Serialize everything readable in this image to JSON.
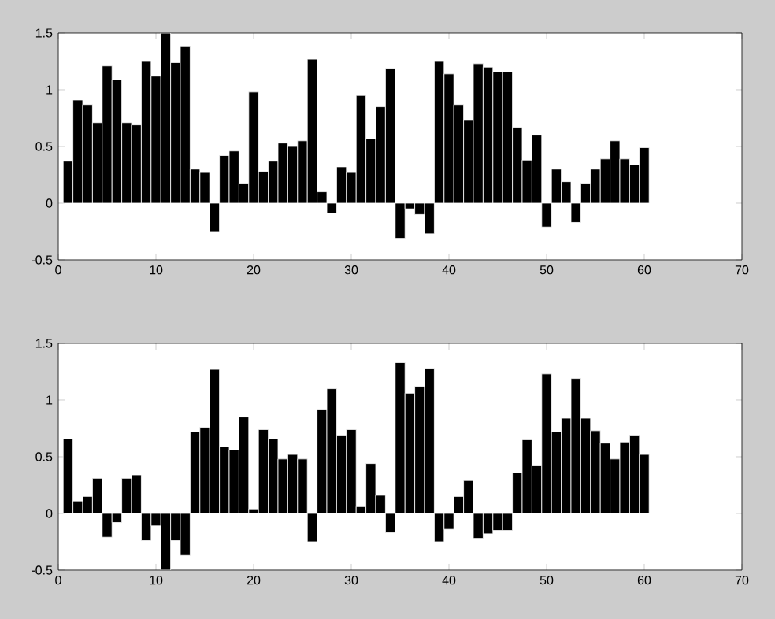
{
  "chart_data": [
    {
      "type": "bar",
      "color": "#000000",
      "xlim": [
        0,
        70
      ],
      "ylim": [
        -0.5,
        1.5
      ],
      "xticks": [
        0,
        10,
        20,
        30,
        40,
        50,
        60,
        70
      ],
      "yticks": [
        -0.5,
        0,
        0.5,
        1,
        1.5
      ],
      "x": [
        1,
        2,
        3,
        4,
        5,
        6,
        7,
        8,
        9,
        10,
        11,
        12,
        13,
        14,
        15,
        16,
        17,
        18,
        19,
        20,
        21,
        22,
        23,
        24,
        25,
        26,
        27,
        28,
        29,
        30,
        31,
        32,
        33,
        34,
        35,
        36,
        37,
        38,
        39,
        40,
        41,
        42,
        43,
        44,
        45,
        46,
        47,
        48,
        49,
        50,
        51,
        52,
        53,
        54,
        55,
        56,
        57,
        58,
        59,
        60
      ],
      "values": [
        0.37,
        0.91,
        0.87,
        0.71,
        1.21,
        1.09,
        0.71,
        0.69,
        1.25,
        1.12,
        1.5,
        1.24,
        1.38,
        0.3,
        0.27,
        -0.25,
        0.42,
        0.46,
        0.17,
        0.98,
        0.28,
        0.37,
        0.53,
        0.5,
        0.55,
        1.27,
        0.1,
        -0.09,
        0.32,
        0.27,
        0.95,
        0.57,
        0.85,
        1.19,
        -0.31,
        -0.05,
        -0.1,
        -0.27,
        1.25,
        1.14,
        0.87,
        0.73,
        1.23,
        1.2,
        1.16,
        1.16,
        0.67,
        0.38,
        0.6,
        -0.21,
        0.3,
        0.19,
        -0.17,
        0.17,
        0.3,
        0.39,
        0.55,
        0.39,
        0.34,
        0.49
      ]
    },
    {
      "type": "bar",
      "color": "#000000",
      "xlim": [
        0,
        70
      ],
      "ylim": [
        -0.5,
        1.5
      ],
      "xticks": [
        0,
        10,
        20,
        30,
        40,
        50,
        60,
        70
      ],
      "yticks": [
        -0.5,
        0,
        0.5,
        1,
        1.5
      ],
      "x": [
        1,
        2,
        3,
        4,
        5,
        6,
        7,
        8,
        9,
        10,
        11,
        12,
        13,
        14,
        15,
        16,
        17,
        18,
        19,
        20,
        21,
        22,
        23,
        24,
        25,
        26,
        27,
        28,
        29,
        30,
        31,
        32,
        33,
        34,
        35,
        36,
        37,
        38,
        39,
        40,
        41,
        42,
        43,
        44,
        45,
        46,
        47,
        48,
        49,
        50,
        51,
        52,
        53,
        54,
        55,
        56,
        57,
        58,
        59,
        60
      ],
      "values": [
        0.66,
        0.11,
        0.15,
        0.31,
        -0.21,
        -0.08,
        0.31,
        0.34,
        -0.24,
        -0.11,
        -0.5,
        -0.24,
        -0.37,
        0.72,
        0.76,
        1.27,
        0.59,
        0.56,
        0.85,
        0.04,
        0.74,
        0.66,
        0.48,
        0.52,
        0.48,
        -0.25,
        0.92,
        1.1,
        0.69,
        0.74,
        0.06,
        0.44,
        0.16,
        -0.17,
        1.33,
        1.06,
        1.12,
        1.28,
        -0.25,
        -0.14,
        0.15,
        0.29,
        -0.22,
        -0.18,
        -0.15,
        -0.15,
        0.36,
        0.65,
        0.42,
        1.23,
        0.72,
        0.84,
        1.19,
        0.84,
        0.73,
        0.62,
        0.48,
        0.63,
        0.69,
        0.52
      ]
    }
  ]
}
